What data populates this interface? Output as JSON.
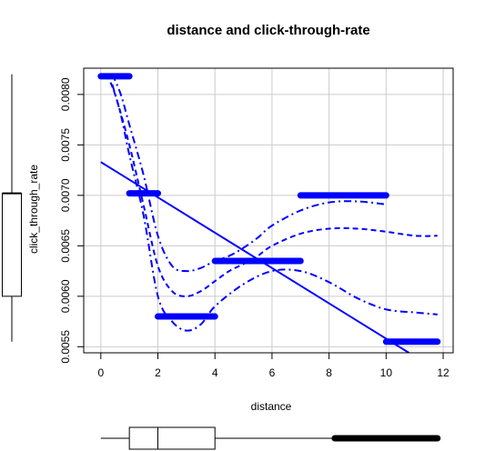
{
  "chart_data": {
    "type": "scatter",
    "title": "distance and click-through-rate",
    "xlabel": "distance",
    "ylabel": "click_through_rate",
    "xlim": [
      -0.6,
      12.35
    ],
    "ylim": [
      0.00544,
      0.00826
    ],
    "x_ticks": [
      "0",
      "2",
      "4",
      "6",
      "8",
      "10",
      "12"
    ],
    "x_tick_values": [
      0,
      2,
      4,
      6,
      8,
      10,
      12
    ],
    "y_ticks": [
      "0.0055",
      "0.0060",
      "0.0065",
      "0.0070",
      "0.0075",
      "0.0080"
    ],
    "y_tick_values": [
      0.0055,
      0.006,
      0.0065,
      0.007,
      0.0075,
      0.008
    ],
    "grid": true,
    "point_color": "#0000ff",
    "line_color": "#0000ff",
    "series": [
      {
        "type": "scatter-segments",
        "segments": [
          {
            "x_from": 0.0,
            "x_to": 1.0,
            "y": 0.00818
          },
          {
            "x_from": 1.0,
            "x_to": 2.0,
            "y": 0.00702
          },
          {
            "x_from": 2.0,
            "x_to": 4.0,
            "y": 0.0058
          },
          {
            "x_from": 4.0,
            "x_to": 7.0,
            "y": 0.00635
          },
          {
            "x_from": 7.0,
            "x_to": 10.0,
            "y": 0.007
          },
          {
            "x_from": 10.0,
            "x_to": 11.8,
            "y": 0.00555
          }
        ]
      },
      {
        "type": "line",
        "style": "solid",
        "x": [
          0,
          10.8
        ],
        "y": [
          0.00733,
          0.00544
        ]
      },
      {
        "type": "line",
        "style": "dashed",
        "x": [
          0.2,
          0.5,
          1.0,
          1.5,
          2.0,
          2.5,
          3.0,
          3.5,
          4.0,
          4.5,
          5.0,
          5.5,
          6.0,
          7.0,
          8.0,
          9.0,
          10.0,
          11.0,
          11.8
        ],
        "y": [
          0.0082,
          0.008,
          0.0075,
          0.0069,
          0.0063,
          0.00605,
          0.006,
          0.00605,
          0.00615,
          0.00625,
          0.00632,
          0.0064,
          0.0065,
          0.00662,
          0.00667,
          0.00667,
          0.00664,
          0.0066,
          0.0066
        ]
      },
      {
        "type": "line",
        "style": "dashdot",
        "x": [
          0.4,
          0.7,
          1.0,
          1.5,
          2.0,
          2.5,
          3.0,
          3.5,
          4.0,
          4.5,
          5.0,
          5.5,
          6.0,
          7.0,
          8.0,
          9.0,
          10.0
        ],
        "y": [
          0.0082,
          0.008,
          0.0077,
          0.0072,
          0.0066,
          0.0063,
          0.00625,
          0.00628,
          0.00635,
          0.0064,
          0.00648,
          0.00658,
          0.0067,
          0.00685,
          0.00693,
          0.00694,
          0.00691
        ]
      },
      {
        "type": "line",
        "style": "dashdot",
        "x": [
          0.4,
          0.7,
          1.0,
          1.5,
          2.0,
          2.5,
          3.0,
          3.5,
          4.0,
          5.0,
          6.0,
          7.0,
          8.0,
          9.0,
          10.0,
          11.0,
          11.8
        ],
        "y": [
          0.0081,
          0.0078,
          0.0074,
          0.0068,
          0.006,
          0.00575,
          0.00566,
          0.00572,
          0.0059,
          0.00612,
          0.00625,
          0.00625,
          0.00614,
          0.00598,
          0.00587,
          0.00584,
          0.00582
        ]
      }
    ],
    "marginal_boxplots": {
      "y": {
        "min": 0.00555,
        "q1": 0.006,
        "median": 0.00702,
        "q3": 0.00702,
        "max": 0.0082
      },
      "x": {
        "min": 0.0,
        "q1": 1.0,
        "median": 2.0,
        "q3": 4.0,
        "whisker_max": 8.2,
        "outliers_from": 8.2,
        "outliers_to": 11.8
      }
    }
  }
}
